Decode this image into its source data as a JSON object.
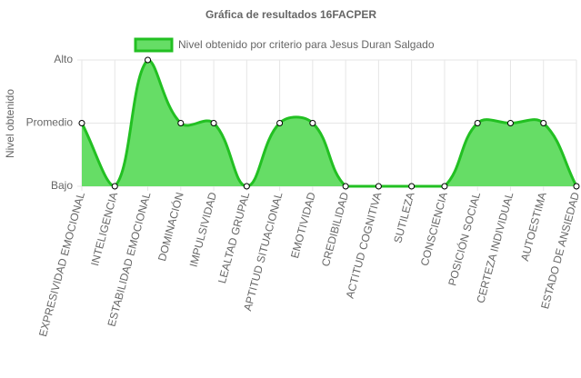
{
  "chart_data": {
    "type": "line",
    "title": "Gráfica de resultados 16FACPER",
    "y_label": "Nivel obtenido",
    "categories": [
      "EXPRESIVIDAD EMOCIONAL",
      "INTELIGENCIA",
      "ESTABILIDAD EMOCIONAL",
      "DOMINACIÓN",
      "IMPULSIVIDAD",
      "LEALTAD GRUPAL",
      "APTITUD SITUACIONAL",
      "EMOTIVIDAD",
      "CREDIBILIDAD",
      "ACTITUD COGNITIVA",
      "SUTILEZA",
      "CONSCIENCIA",
      "POSICIÓN SOCIAL",
      "CERTEZA INDIVIDUAL",
      "AUTOESTIMA",
      "ESTADO DE ANSIEDAD"
    ],
    "series": [
      {
        "name": "Nivel obtenido por criterio para Jesus Duran Salgado",
        "color": "#22c022",
        "fill": "#66dd66",
        "values": [
          2,
          1,
          3,
          2,
          2,
          1,
          2,
          2,
          1,
          1,
          1,
          1,
          2,
          2,
          2,
          1
        ]
      }
    ],
    "ylim": [
      1,
      3
    ],
    "yticks": [
      {
        "value": 1,
        "label": "Bajo"
      },
      {
        "value": 2,
        "label": "Promedio"
      },
      {
        "value": 3,
        "label": "Alto"
      }
    ],
    "grid": true,
    "legend": "top"
  }
}
